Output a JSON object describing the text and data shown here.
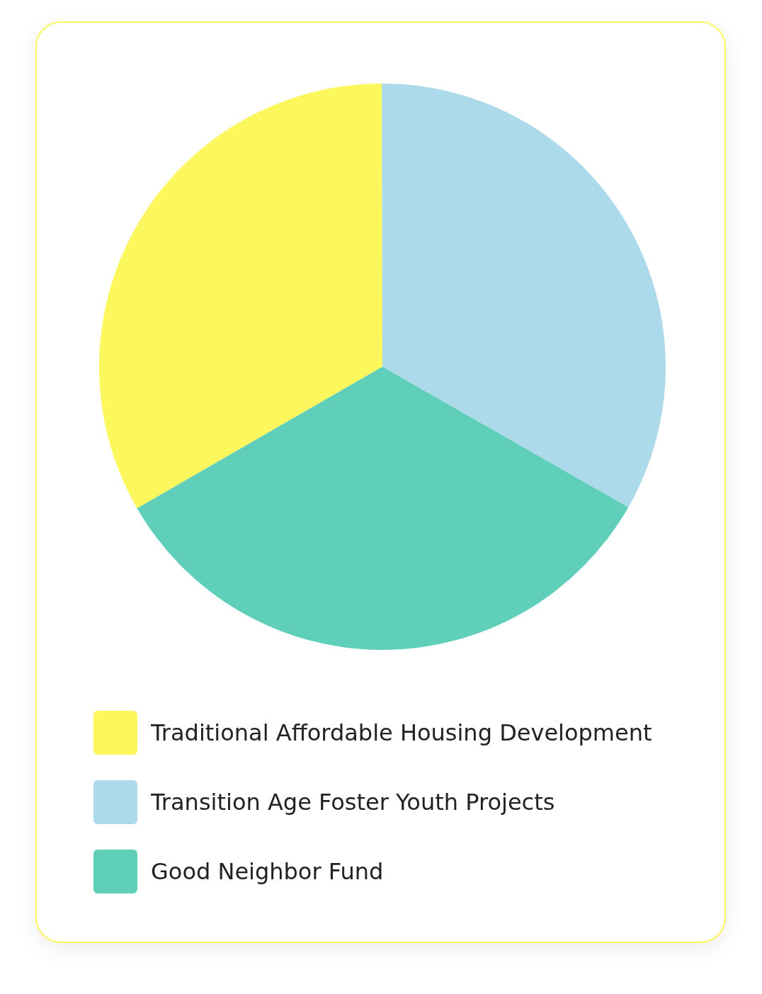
{
  "chart_data": {
    "type": "pie",
    "categories": [
      "Traditional Affordable Housing Development",
      "Transition Age Foster Youth Projects",
      "Good Neighbor Fund"
    ],
    "values": [
      33.3,
      33.3,
      33.4
    ],
    "colors": [
      "#fdf75e",
      "#acdaea",
      "#5fcfb9"
    ],
    "legend": "bottom"
  }
}
